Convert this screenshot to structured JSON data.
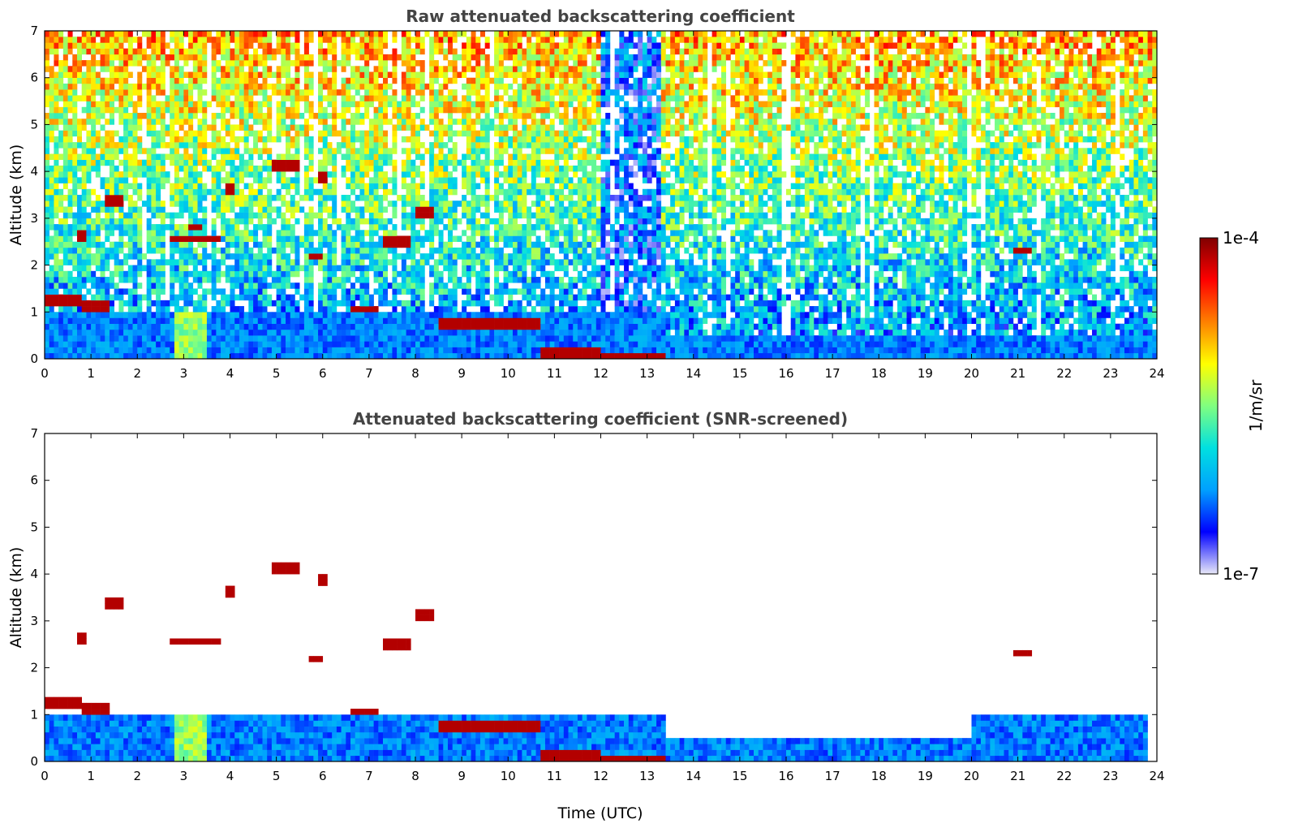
{
  "chart_data": [
    {
      "type": "heatmap",
      "title": "Raw attenuated backscattering coefficient",
      "xlabel": "",
      "ylabel": "Altitude (km)",
      "xlim": [
        0,
        24
      ],
      "ylim": [
        0,
        7
      ],
      "x_ticks": [
        "0",
        "1",
        "2",
        "3",
        "4",
        "5",
        "6",
        "7",
        "8",
        "9",
        "10",
        "11",
        "12",
        "13",
        "14",
        "15",
        "16",
        "17",
        "18",
        "19",
        "20",
        "21",
        "22",
        "23",
        "24"
      ],
      "y_ticks": [
        "0",
        "1",
        "2",
        "3",
        "4",
        "5",
        "6",
        "7"
      ],
      "background_level": 0.55,
      "noise_level": 0.35,
      "grid": false,
      "boundary_layer": [
        {
          "t0": 0,
          "t1": 13.4,
          "top": 1.0
        },
        {
          "t0": 13.4,
          "t1": 24,
          "top": 0.5
        }
      ],
      "features": [
        {
          "kind": "cloud",
          "t0": 0.0,
          "t1": 0.8,
          "alt": 1.25
        },
        {
          "kind": "cloud",
          "t0": 0.85,
          "t1": 1.4,
          "alt": 1.15
        },
        {
          "kind": "cloud",
          "t0": 0.75,
          "t1": 0.9,
          "alt": 2.6
        },
        {
          "kind": "cloud",
          "t0": 1.3,
          "t1": 1.7,
          "alt": 3.35
        },
        {
          "kind": "cloud",
          "t0": 2.7,
          "t1": 3.8,
          "alt": 2.55
        },
        {
          "kind": "cloud",
          "t0": 3.1,
          "t1": 3.4,
          "alt": 2.8
        },
        {
          "kind": "cloud",
          "t0": 3.9,
          "t1": 4.1,
          "alt": 3.6
        },
        {
          "kind": "cloud",
          "t0": 4.9,
          "t1": 5.5,
          "alt": 4.1
        },
        {
          "kind": "cloud",
          "t0": 5.7,
          "t1": 6.0,
          "alt": 2.2
        },
        {
          "kind": "cloud",
          "t0": 5.9,
          "t1": 6.1,
          "alt": 3.9
        },
        {
          "kind": "cloud",
          "t0": 6.6,
          "t1": 7.2,
          "alt": 1.05
        },
        {
          "kind": "cloud",
          "t0": 7.3,
          "t1": 7.9,
          "alt": 2.5
        },
        {
          "kind": "cloud",
          "t0": 8.0,
          "t1": 8.4,
          "alt": 3.1
        },
        {
          "kind": "cloud",
          "t0": 8.5,
          "t1": 10.7,
          "alt": 0.75
        },
        {
          "kind": "cloud",
          "t0": 10.7,
          "t1": 12.0,
          "alt": 0.15
        },
        {
          "kind": "cloud",
          "t0": 12.0,
          "t1": 13.4,
          "alt": 0.05
        },
        {
          "kind": "cloud",
          "t0": 20.9,
          "t1": 21.3,
          "alt": 2.3
        }
      ]
    },
    {
      "type": "heatmap",
      "title": "Attenuated backscattering coefficient (SNR-screened)",
      "xlabel": "Time (UTC)",
      "ylabel": "Altitude (km)",
      "xlim": [
        0,
        24
      ],
      "ylim": [
        0,
        7
      ],
      "x_ticks": [
        "0",
        "1",
        "2",
        "3",
        "4",
        "5",
        "6",
        "7",
        "8",
        "9",
        "10",
        "11",
        "12",
        "13",
        "14",
        "15",
        "16",
        "17",
        "18",
        "19",
        "20",
        "21",
        "22",
        "23",
        "24"
      ],
      "y_ticks": [
        "0",
        "1",
        "2",
        "3",
        "4",
        "5",
        "6",
        "7"
      ],
      "background_level": 0.0,
      "noise_level": 0.0,
      "grid": false,
      "boundary_layer": [
        {
          "t0": 0,
          "t1": 13.4,
          "top": 1.0
        },
        {
          "t0": 13.4,
          "t1": 20.0,
          "top": 0.5
        },
        {
          "t0": 20.0,
          "t1": 23.8,
          "top": 1.0
        }
      ],
      "features": [
        {
          "kind": "cloud",
          "t0": 0.0,
          "t1": 0.8,
          "alt": 1.25
        },
        {
          "kind": "cloud",
          "t0": 0.85,
          "t1": 1.4,
          "alt": 1.15
        },
        {
          "kind": "cloud",
          "t0": 0.75,
          "t1": 0.9,
          "alt": 2.6
        },
        {
          "kind": "cloud",
          "t0": 1.3,
          "t1": 1.7,
          "alt": 3.35
        },
        {
          "kind": "cloud",
          "t0": 2.7,
          "t1": 3.8,
          "alt": 2.55
        },
        {
          "kind": "cloud",
          "t0": 3.9,
          "t1": 4.1,
          "alt": 3.6
        },
        {
          "kind": "cloud",
          "t0": 4.9,
          "t1": 5.5,
          "alt": 4.1
        },
        {
          "kind": "cloud",
          "t0": 5.7,
          "t1": 6.0,
          "alt": 2.2
        },
        {
          "kind": "cloud",
          "t0": 5.9,
          "t1": 6.1,
          "alt": 3.9
        },
        {
          "kind": "cloud",
          "t0": 6.6,
          "t1": 7.2,
          "alt": 1.05
        },
        {
          "kind": "cloud",
          "t0": 7.3,
          "t1": 7.9,
          "alt": 2.5
        },
        {
          "kind": "cloud",
          "t0": 8.0,
          "t1": 8.4,
          "alt": 3.1
        },
        {
          "kind": "cloud",
          "t0": 8.5,
          "t1": 10.7,
          "alt": 0.75
        },
        {
          "kind": "cloud",
          "t0": 10.7,
          "t1": 12.0,
          "alt": 0.15
        },
        {
          "kind": "cloud",
          "t0": 12.0,
          "t1": 13.4,
          "alt": 0.05
        },
        {
          "kind": "cloud",
          "t0": 20.9,
          "t1": 21.3,
          "alt": 2.3
        }
      ]
    }
  ],
  "colorbar": {
    "max_label": "1e-4",
    "min_label": "1e-7",
    "unit_label": "1/m/sr",
    "scale": "log",
    "colormap": "jet",
    "colors": [
      "#e8e8f8",
      "#0000ff",
      "#00a0ff",
      "#00e0e0",
      "#80ff80",
      "#ffff00",
      "#ff8000",
      "#ff0000",
      "#800000"
    ]
  }
}
